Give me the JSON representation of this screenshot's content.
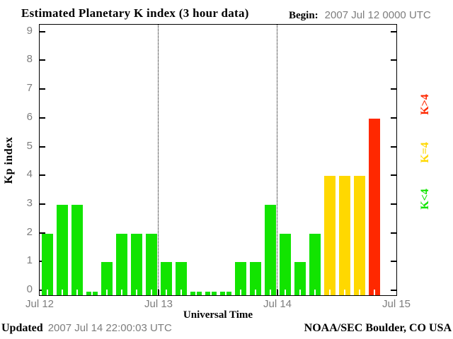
{
  "title": "Estimated Planetary K index (3 hour data)",
  "begin": {
    "label": "Begin:",
    "value": "2007 Jul 12 0000 UTC"
  },
  "y_axis": {
    "label": "Kp index"
  },
  "x_axis": {
    "label": "Universal Time",
    "tick_labels": [
      "Jul 12",
      "Jul 13",
      "Jul 14",
      "Jul 15"
    ]
  },
  "legend": [
    {
      "label": "K<4",
      "color": "#12e400"
    },
    {
      "label": "K=4",
      "color": "#ffd800"
    },
    {
      "label": "K>4",
      "color": "#ff2800"
    }
  ],
  "footer": {
    "updated_label": "Updated",
    "updated_value": "2007 Jul 14 22:00:03 UTC",
    "credit": "NOAA/SEC Boulder, CO USA"
  },
  "chart_data": {
    "type": "bar",
    "title": "Estimated Planetary K index (3 hour data)",
    "xlabel": "Universal Time",
    "ylabel": "Kp index",
    "ylim": [
      0,
      9
    ],
    "slots_per_day": 8,
    "slot_hours": 3,
    "grid": "dotted vertical lines at day boundaries",
    "legend_position": "right, rotated",
    "color_rules": {
      "below_4": "#12e400",
      "equal_4": "#ffd800",
      "above_4": "#ff2800"
    },
    "days": [
      {
        "date": "Jul 12",
        "values": [
          2,
          3,
          3,
          0,
          1,
          2,
          2,
          2
        ]
      },
      {
        "date": "Jul 13",
        "values": [
          1,
          1,
          0,
          0,
          0,
          1,
          1,
          3
        ]
      },
      {
        "date": "Jul 14",
        "values": [
          2,
          1,
          2,
          4,
          4,
          4,
          6
        ]
      }
    ],
    "end_tick_label": "Jul 15"
  }
}
